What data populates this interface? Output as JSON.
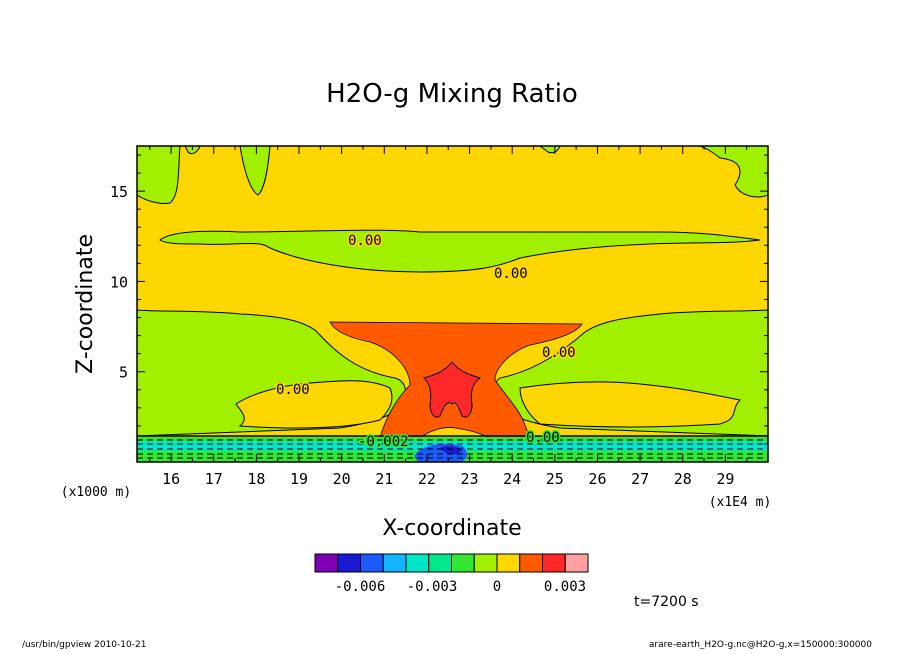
{
  "chart_data": {
    "type": "heatmap",
    "title": "H2O-g Mixing Ratio",
    "xlabel": "X-coordinate",
    "ylabel": "Z-coordinate",
    "x_unit": "(x1E4 m)",
    "y_unit": "(x1000 m)",
    "xlim": [
      15.2,
      30
    ],
    "ylim": [
      0,
      17.5
    ],
    "xticks": [
      "16",
      "17",
      "18",
      "19",
      "20",
      "21",
      "22",
      "23",
      "24",
      "25",
      "26",
      "27",
      "28",
      "29"
    ],
    "yticks": [
      "5",
      "10",
      "15"
    ],
    "contour_labels": [
      "0.00",
      "0.00",
      "0.00",
      "0.00",
      "0.00",
      "-0.002",
      "0.00"
    ],
    "colorbar": {
      "colors": [
        "#7d00b4",
        "#1a1ad4",
        "#1a5aff",
        "#14b4ff",
        "#00e6c8",
        "#00e88c",
        "#32e632",
        "#a0f000",
        "#ffd700",
        "#ff5a00",
        "#ff2828",
        "#ffa0a0"
      ],
      "labels": [
        "-0.006",
        "-0.003",
        "0",
        "0.003"
      ]
    },
    "fill_colors": {
      "background": "#ffd700",
      "green_light": "#a0f000",
      "orange": "#ff5a00",
      "red": "#ff2828",
      "green": "#32e632",
      "cyan": "#00e6c8",
      "blue": "#1a5aff"
    }
  },
  "annotation": "t=7200 s",
  "footer": {
    "left": "/usr/bin/gpview   2010-10-21",
    "right": "arare-earth_H2O-g.nc@H2O-g,x=150000:300000"
  }
}
